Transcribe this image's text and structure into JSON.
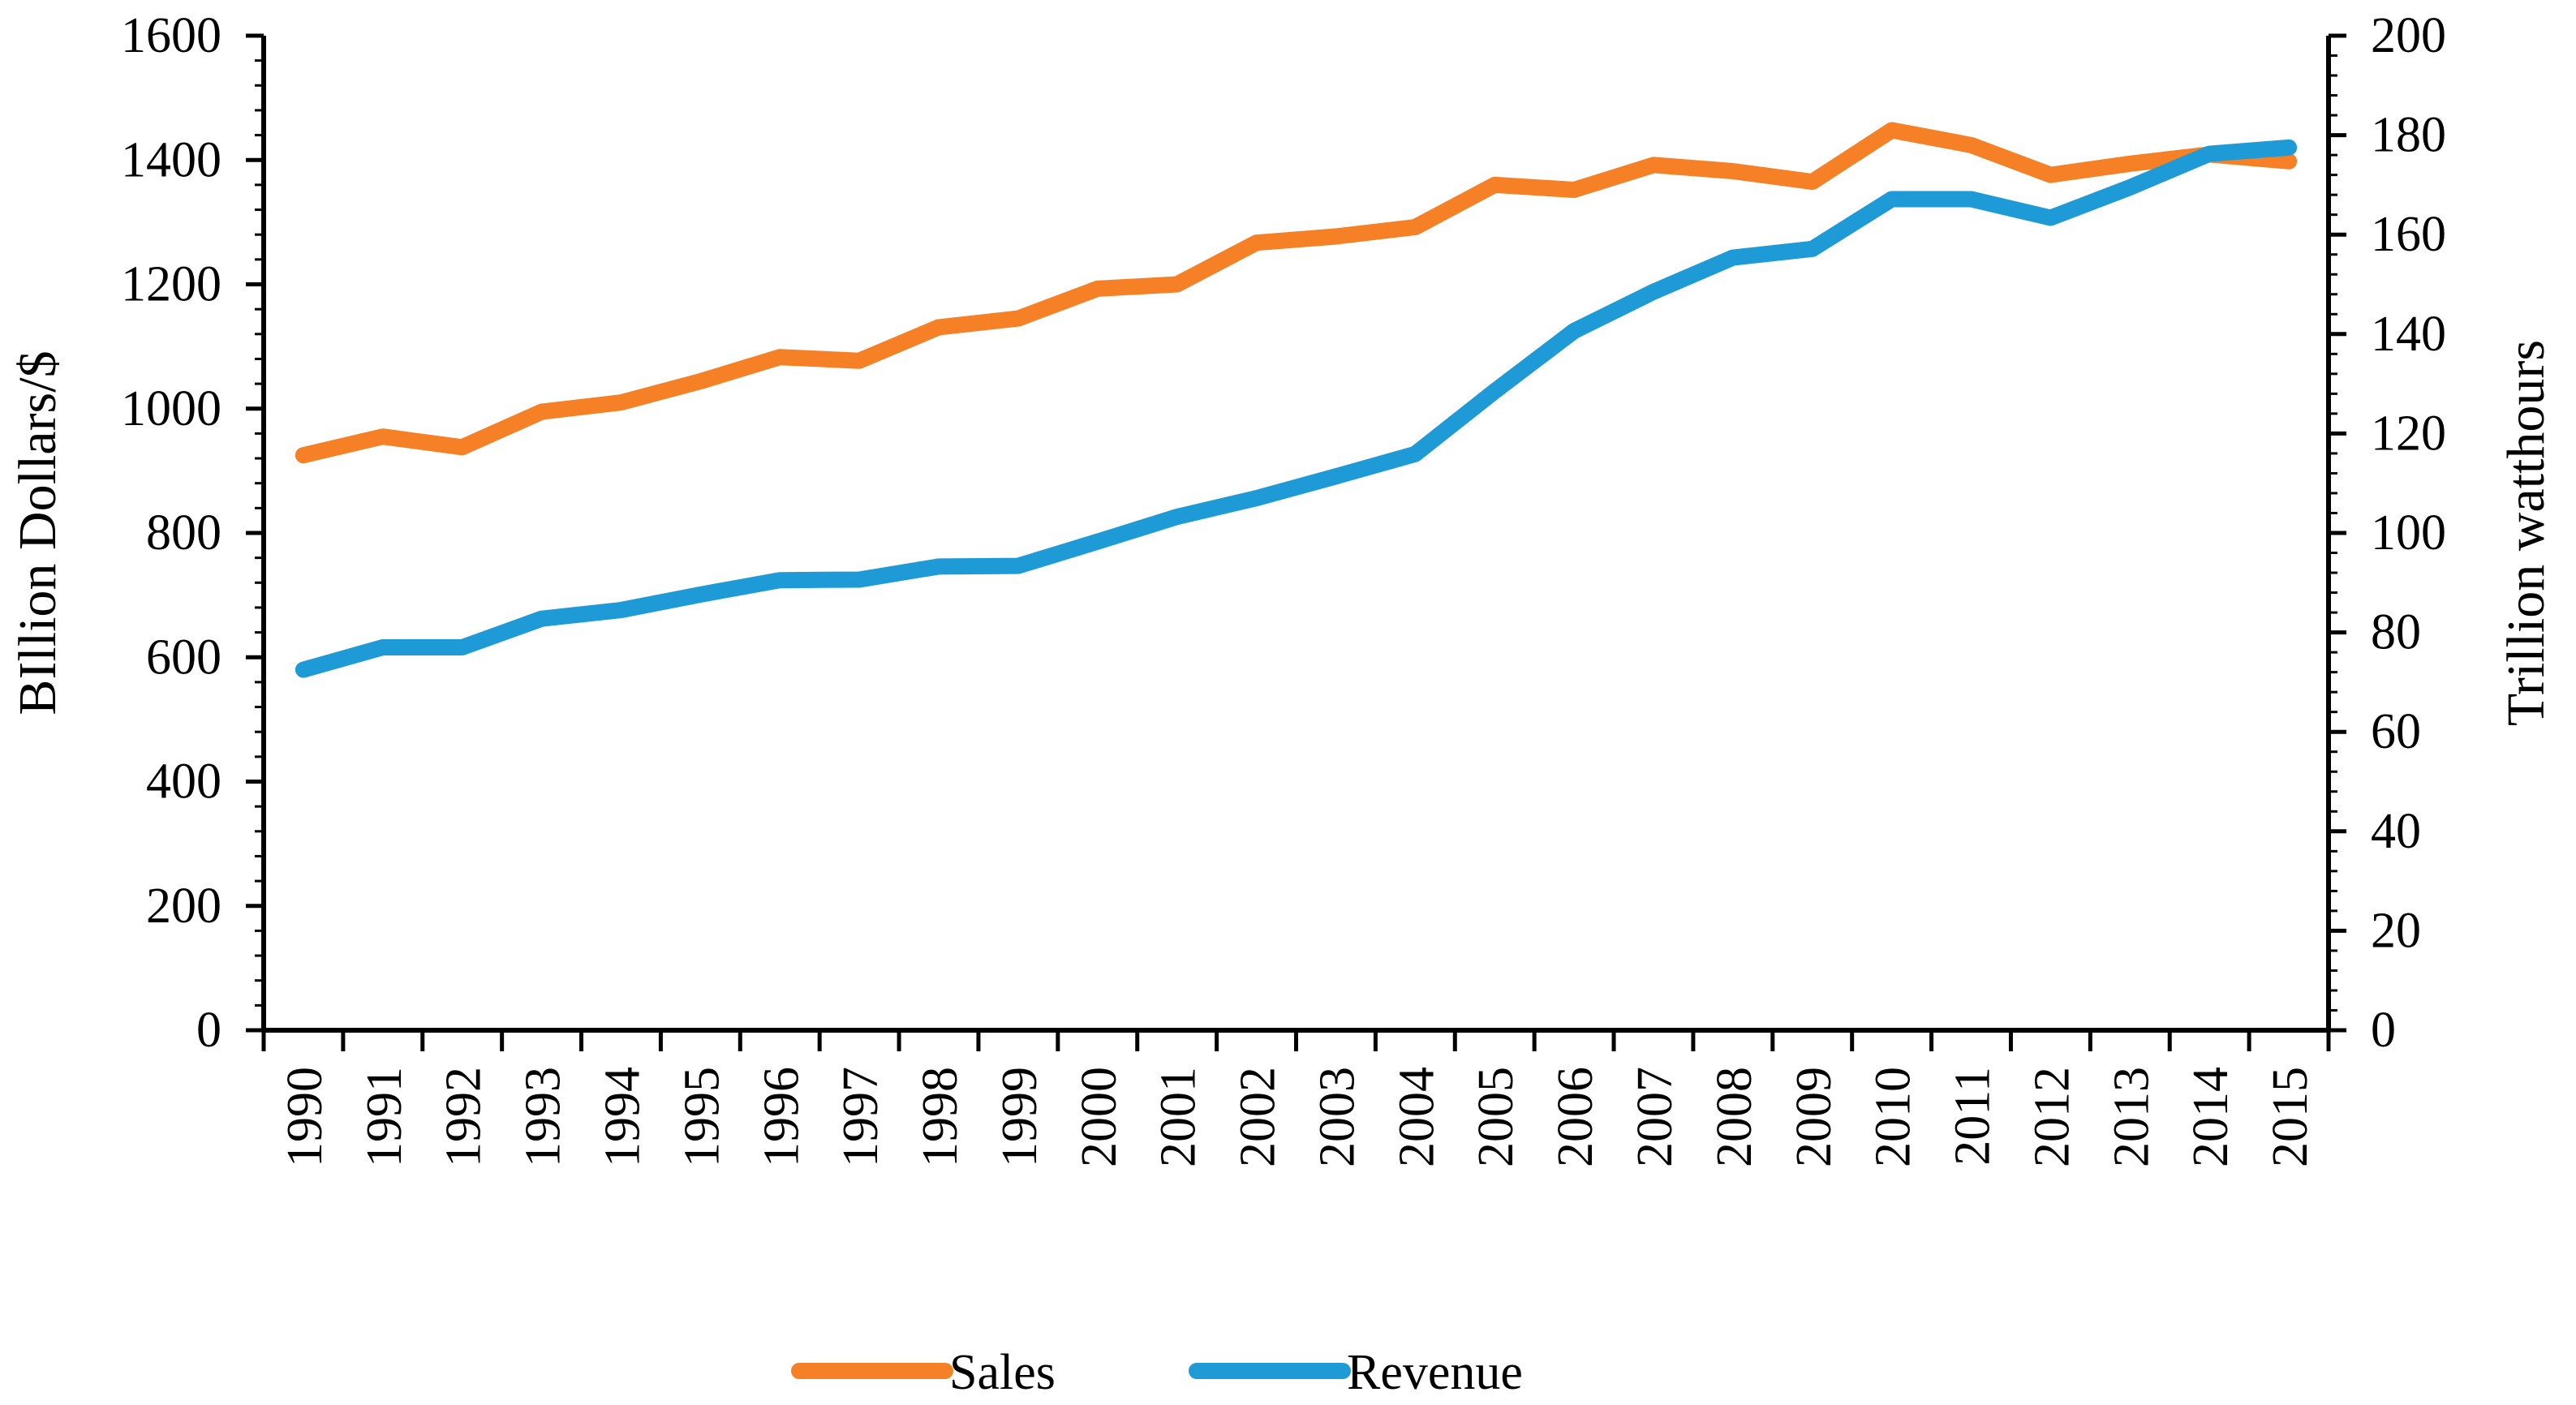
{
  "chart_data": {
    "type": "line",
    "title": "",
    "categories": [
      "1990",
      "1991",
      "1992",
      "1993",
      "1994",
      "1995",
      "1996",
      "1997",
      "1998",
      "1999",
      "2000",
      "2001",
      "2002",
      "2003",
      "2004",
      "2005",
      "2006",
      "2007",
      "2008",
      "2009",
      "2010",
      "2011",
      "2012",
      "2013",
      "2014",
      "2015"
    ],
    "y_left": {
      "label": "BIllion Dollars/$",
      "range": [
        0,
        1600
      ],
      "ticks": [
        0,
        200,
        400,
        600,
        800,
        1000,
        1200,
        1400,
        1600
      ]
    },
    "y_right": {
      "label": "Trillion watthours",
      "range": [
        0,
        200
      ],
      "ticks": [
        0,
        20,
        40,
        60,
        80,
        100,
        120,
        140,
        160,
        180,
        200
      ]
    },
    "series": [
      {
        "name": "Sales",
        "axis": "left",
        "color": "#F58025",
        "values": [
          925,
          955,
          938,
          995,
          1010,
          1044,
          1083,
          1077,
          1131,
          1145,
          1193,
          1200,
          1267,
          1277,
          1292,
          1360,
          1352,
          1392,
          1382,
          1365,
          1448,
          1424,
          1376,
          1394,
          1409,
          1398
        ]
      },
      {
        "name": "Revenue",
        "axis": "left",
        "color": "#1E9AD6",
        "values": [
          580,
          616,
          616,
          662,
          676,
          701,
          724,
          725,
          746,
          747,
          786,
          826,
          856,
          891,
          927,
          1028,
          1125,
          1188,
          1243,
          1257,
          1337,
          1337,
          1307,
          1356,
          1410,
          1420
        ]
      }
    ],
    "legend": {
      "position": "bottom",
      "entries": [
        "Sales",
        "Revenue"
      ]
    },
    "grid": false
  }
}
